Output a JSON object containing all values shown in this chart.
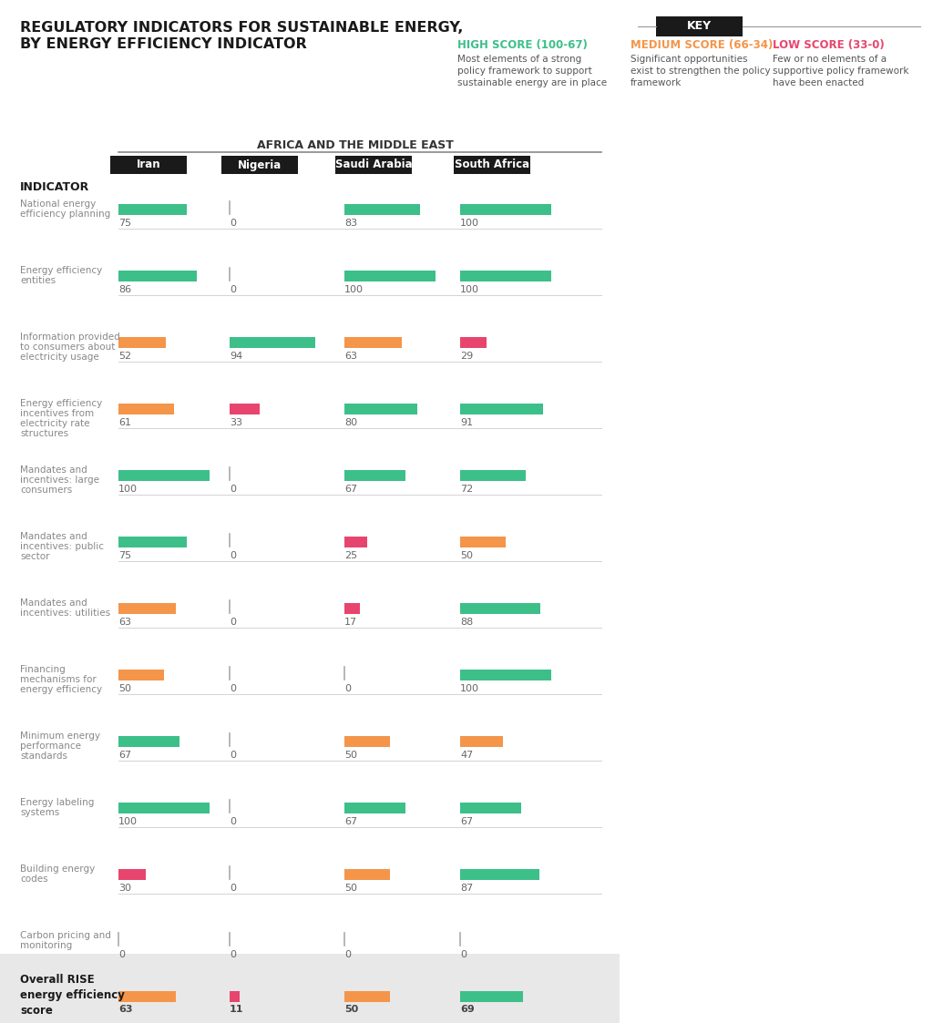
{
  "title_line1": "REGULATORY INDICATORS FOR SUSTAINABLE ENERGY,",
  "title_line2": "BY ENERGY EFFICIENCY INDICATOR",
  "region": "AFRICA AND THE MIDDLE EAST",
  "countries": [
    "Iran",
    "Nigeria",
    "Saudi Arabia",
    "South Africa"
  ],
  "indicator_label": "INDICATOR",
  "indicators": [
    "National energy\nefficiency planning",
    "Energy efficiency\nentities",
    "Information provided\nto consumers about\nelectricity usage",
    "Energy efficiency\nincentives from\nelectricity rate\nstructures",
    "Mandates and\nincentives: large\nconsumers",
    "Mandates and\nincentives: public\nsector",
    "Mandates and\nincentives: utilities",
    "Financing\nmechanisms for\nenergy efficiency",
    "Minimum energy\nperformance\nstandards",
    "Energy labeling\nsystems",
    "Building energy\ncodes",
    "Carbon pricing and\nmonitoring"
  ],
  "values": [
    [
      75,
      0,
      83,
      100
    ],
    [
      86,
      0,
      100,
      100
    ],
    [
      52,
      94,
      63,
      29
    ],
    [
      61,
      33,
      80,
      91
    ],
    [
      100,
      0,
      67,
      72
    ],
    [
      75,
      0,
      25,
      50
    ],
    [
      63,
      0,
      17,
      88
    ],
    [
      50,
      0,
      0,
      100
    ],
    [
      67,
      0,
      50,
      47
    ],
    [
      100,
      0,
      67,
      67
    ],
    [
      30,
      0,
      50,
      87
    ],
    [
      0,
      0,
      0,
      0
    ]
  ],
  "overall": [
    63,
    11,
    50,
    69
  ],
  "high_color": "#3dbf8a",
  "medium_color": "#f4954a",
  "low_color": "#e8456e",
  "key_high_label": "HIGH SCORE (100-67)",
  "key_medium_label": "MEDIUM SCORE (66-34)",
  "key_low_label": "LOW SCORE (33-0)",
  "key_high_desc": "Most elements of a strong\npolicy framework to support\nsustainable energy are in place",
  "key_medium_desc": "Significant opportunities\nexist to strengthen the policy\nframework",
  "key_low_desc": "Few or no elements of a\nsupportive policy framework\nhave been enacted",
  "background_color": "#ffffff",
  "overall_bg": "#e8e8e8"
}
